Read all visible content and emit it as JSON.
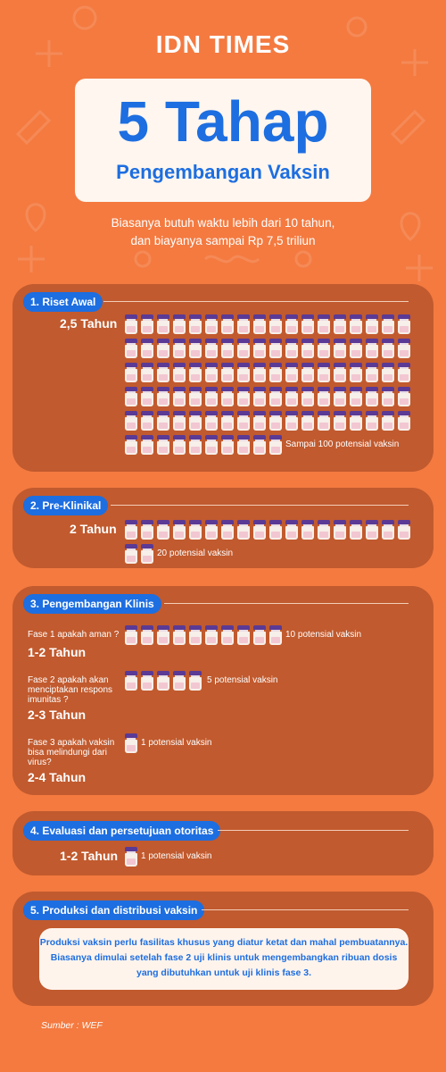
{
  "brand": {
    "part1": "IDN",
    "part2": " TIMES"
  },
  "title": {
    "main": "5 Tahap",
    "sub": "Pengembangan Vaksin"
  },
  "intro": {
    "line1": "Biasanya butuh waktu lebih dari 10 tahun,",
    "line2": "dan biayanya sampai Rp 7,5 triliun"
  },
  "stages": [
    {
      "label": "1. Riset Awal",
      "duration": "2,5 Tahun",
      "note": "Sampai 100 potensial vaksin",
      "vial_count": 100
    },
    {
      "label": "2. Pre-Klinikal",
      "duration": "2 Tahun",
      "note": "20 potensial vaksin",
      "vial_count": 20
    },
    {
      "label": "3. Pengembangan Klinis",
      "phases": [
        {
          "question": "Fase 1 apakah aman ?",
          "duration": "1-2 Tahun",
          "note": "10 potensial vaksin",
          "vial_count": 10
        },
        {
          "question": "Fase 2 apakah akan menciptakan respons imunitas ?",
          "duration": "2-3 Tahun",
          "note": "5 potensial vaksin",
          "vial_count": 5
        },
        {
          "question": "Fase 3  apakah vaksin bisa melindungi dari virus?",
          "duration": "2-4 Tahun",
          "note": "1 potensial vaksin",
          "vial_count": 1
        }
      ]
    },
    {
      "label": "4. Evaluasi dan persetujuan otoritas",
      "duration": "1-2 Tahun",
      "note": "1 potensial vaksin",
      "vial_count": 1
    },
    {
      "label": "5. Produksi dan distribusi vaksin",
      "info": "Produksi vaksin perlu fasilitas khusus yang diatur ketat dan mahal pembuatannya. Biasanya dimulai setelah fase 2 uji klinis untuk mengembangkan ribuan dosis yang dibutuhkan untuk uji klinis fase 3."
    }
  ],
  "source": "Sumber : WEF",
  "colors": {
    "background": "#f47a40",
    "panel": "#c15a2e",
    "accent": "#1d6ee0",
    "card": "#fff6ef",
    "vial_cap": "#5a3a95"
  },
  "icons": [
    "vaccine-vial-icon"
  ]
}
